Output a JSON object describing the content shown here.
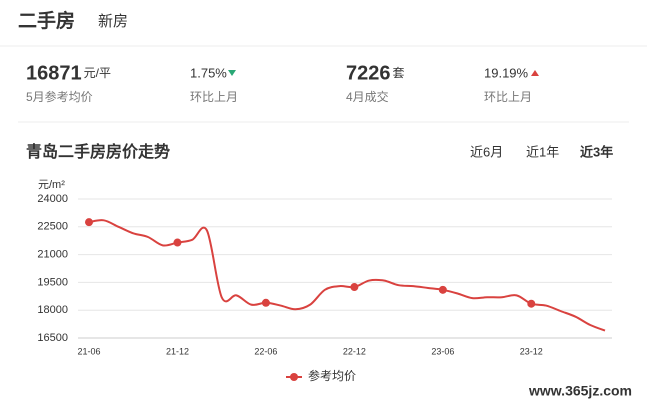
{
  "tabs": [
    "二手房",
    "新房"
  ],
  "stats": [
    {
      "value": 16871,
      "unit": "元/平",
      "label": "5月参考均价",
      "change": "1.75%",
      "change_label": "环比上月"
    },
    {
      "value": 7226,
      "unit": "套",
      "label": "4月成交",
      "change": "19.19%",
      "change_label": "环比上月"
    }
  ],
  "range_options": [
    "近6月",
    "近1年",
    "近3年"
  ],
  "watermark": "www.365jz.com",
  "chart_data": {
    "type": "line",
    "title": "青岛二手房房价走势",
    "y_axis_label": "元/m²",
    "categories": [
      "21-06",
      null,
      null,
      null,
      null,
      null,
      "21-12",
      null,
      null,
      null,
      null,
      null,
      "22-06",
      null,
      null,
      null,
      null,
      null,
      "22-12",
      null,
      null,
      null,
      null,
      null,
      "23-06",
      null,
      null,
      null,
      null,
      null,
      "23-12",
      null,
      null,
      null,
      null,
      null
    ],
    "series": [
      {
        "name": "参考均价",
        "color": "#d9423f",
        "values": [
          22750,
          22850,
          22500,
          22150,
          21950,
          21500,
          21650,
          21800,
          22300,
          18700,
          18800,
          18300,
          18400,
          18250,
          18050,
          18300,
          19100,
          19300,
          19250,
          19600,
          19600,
          19350,
          19300,
          19200,
          19100,
          18900,
          18650,
          18700,
          18700,
          18800,
          18350,
          18250,
          17950,
          17650,
          17200,
          16900
        ]
      }
    ],
    "ylim": [
      16500,
      24000
    ],
    "yticks": [
      16500,
      18000,
      19500,
      21000,
      22500,
      24000
    ],
    "grid": true
  }
}
